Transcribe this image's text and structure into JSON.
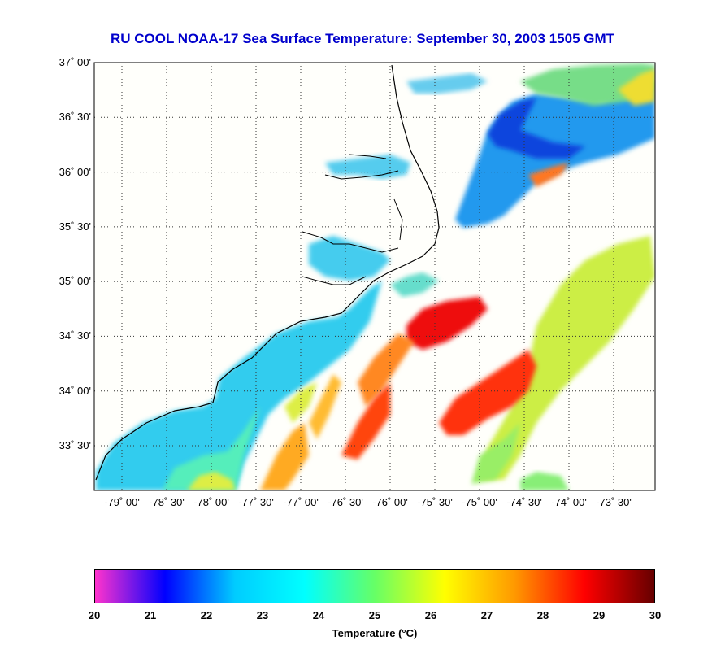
{
  "title": "RU COOL  NOAA-17  Sea Surface Temperature:  September 30, 2003 1505 GMT",
  "lat_ticks": [
    {
      "label": "37˚ 00'",
      "value": 37.0
    },
    {
      "label": "36˚ 30'",
      "value": 36.5
    },
    {
      "label": "36˚ 00'",
      "value": 36.0
    },
    {
      "label": "35˚ 30'",
      "value": 35.5
    },
    {
      "label": "35˚ 00'",
      "value": 35.0
    },
    {
      "label": "34˚ 30'",
      "value": 34.5
    },
    {
      "label": "34˚ 00'",
      "value": 34.0
    },
    {
      "label": "33˚ 30'",
      "value": 33.5
    }
  ],
  "lon_ticks": [
    {
      "label": "-79˚ 00'",
      "value": -79.0
    },
    {
      "label": "-78˚ 30'",
      "value": -78.5
    },
    {
      "label": "-78˚ 00'",
      "value": -78.0
    },
    {
      "label": "-77˚ 30'",
      "value": -77.5
    },
    {
      "label": "-77˚ 00'",
      "value": -77.0
    },
    {
      "label": "-76˚ 30'",
      "value": -76.5
    },
    {
      "label": "-76˚ 00'",
      "value": -76.0
    },
    {
      "label": "-75˚ 30'",
      "value": -75.5
    },
    {
      "label": "-75˚ 00'",
      "value": -75.0
    },
    {
      "label": "-74˚ 30'",
      "value": -74.5
    },
    {
      "label": "-74˚ 00'",
      "value": -74.0
    },
    {
      "label": "-73˚ 30'",
      "value": -73.5
    }
  ],
  "colorbar": {
    "ticks": [
      "20",
      "21",
      "22",
      "23",
      "24",
      "25",
      "26",
      "27",
      "28",
      "29",
      "30"
    ],
    "label": "Temperature (°C)",
    "min": 20,
    "max": 30,
    "colors": [
      "#ff33cc",
      "#0000ff",
      "#00ccff",
      "#00ffff",
      "#66ff66",
      "#ffff00",
      "#ff9900",
      "#ff0000",
      "#660000"
    ]
  }
}
